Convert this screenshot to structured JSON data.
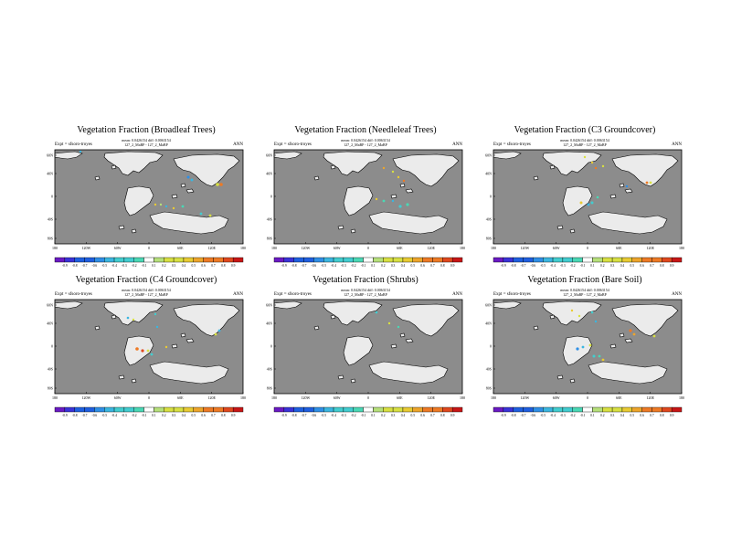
{
  "page": {
    "background": "#ffffff"
  },
  "colors": {
    "ocean": "#8c8c8c",
    "land": "#ebebeb",
    "palette": [
      "#6a1ac4",
      "#3a33d8",
      "#1f5fe0",
      "#2f8fe6",
      "#3bb6e0",
      "#42cdd0",
      "#4ad8b5",
      "#ffffff",
      "#b6e07a",
      "#d8e042",
      "#e9cb33",
      "#eea52b",
      "#ee7a25",
      "#e0481e",
      "#c81616"
    ]
  },
  "panels": [
    {
      "title": "Vegetation Fraction (Broadleaf Trees)",
      "meta_line1": "mean: 0.0426154 diff: 0.0063154",
      "meta_line2": "127_2_MaBP - 127_2_MaBP",
      "expt": "Expt = sfsoro-troyes",
      "season": "ANN",
      "lat_labels": [
        "60N",
        "40N",
        "0",
        "40S",
        "80S"
      ],
      "lon_labels": [
        "180",
        "120W",
        "60W",
        "0",
        "60E",
        "120E",
        "180"
      ],
      "colorbar_labels": [
        "-0.9",
        "-0.8",
        "-0.7",
        "-0.6",
        "-0.5",
        "-0.4",
        "-0.3",
        "-0.2",
        "-0.1",
        "0.1",
        "0.2",
        "0.3",
        "0.4",
        "0.5",
        "0.6",
        "0.7",
        "0.8",
        "0.9"
      ]
    },
    {
      "title": "Vegetation Fraction (Needleleaf Trees)",
      "meta_line1": "mean: 0.0426154 diff: 0.0063154",
      "meta_line2": "127_2_MaBP - 127_2_MaBP",
      "expt": "Expt = sfsoro-troyes",
      "season": "ANN",
      "lat_labels": [
        "60N",
        "40N",
        "0",
        "40S",
        "80S"
      ],
      "lon_labels": [
        "180",
        "120W",
        "60W",
        "0",
        "60E",
        "120E",
        "180"
      ],
      "colorbar_labels": [
        "-0.9",
        "-0.8",
        "-0.7",
        "-0.6",
        "-0.5",
        "-0.4",
        "-0.3",
        "-0.2",
        "-0.1",
        "0.1",
        "0.2",
        "0.3",
        "0.4",
        "0.5",
        "0.6",
        "0.7",
        "0.8",
        "0.9"
      ]
    },
    {
      "title": "Vegetation Fraction (C3 Groundcover)",
      "meta_line1": "mean: 0.0426154 diff: 0.0063154",
      "meta_line2": "127_2_MaBP - 127_2_MaBP",
      "expt": "Expt = sfsoro-troyes",
      "season": "ANN",
      "lat_labels": [
        "60N",
        "40N",
        "0",
        "40S",
        "80S"
      ],
      "lon_labels": [
        "180",
        "120W",
        "60W",
        "0",
        "60E",
        "120E",
        "180"
      ],
      "colorbar_labels": [
        "-0.9",
        "-0.8",
        "-0.7",
        "-0.6",
        "-0.5",
        "-0.4",
        "-0.3",
        "-0.2",
        "-0.1",
        "0.1",
        "0.2",
        "0.3",
        "0.4",
        "0.5",
        "0.6",
        "0.7",
        "0.8",
        "0.9"
      ]
    },
    {
      "title": "Vegetation Fraction (C4 Groundcover)",
      "meta_line1": "mean: 0.0426154 diff: 0.0063154",
      "meta_line2": "127_2_MaBP - 127_2_MaBP",
      "expt": "Expt = sfsoro-troyes",
      "season": "ANN",
      "lat_labels": [
        "60N",
        "40N",
        "0",
        "40S",
        "80S"
      ],
      "lon_labels": [
        "180",
        "120W",
        "60W",
        "0",
        "60E",
        "120E",
        "180"
      ],
      "colorbar_labels": [
        "-0.9",
        "-0.8",
        "-0.7",
        "-0.6",
        "-0.5",
        "-0.4",
        "-0.3",
        "-0.2",
        "-0.1",
        "0.1",
        "0.2",
        "0.3",
        "0.4",
        "0.5",
        "0.6",
        "0.7",
        "0.8",
        "0.9"
      ]
    },
    {
      "title": "Vegetation Fraction (Shrubs)",
      "meta_line1": "mean: 0.0426154 diff: 0.0063154",
      "meta_line2": "127_2_MaBP - 127_2_MaBP",
      "expt": "Expt = sfsoro-troyes",
      "season": "ANN",
      "lat_labels": [
        "60N",
        "40N",
        "0",
        "40S",
        "80S"
      ],
      "lon_labels": [
        "180",
        "120W",
        "60W",
        "0",
        "60E",
        "120E",
        "180"
      ],
      "colorbar_labels": [
        "-0.9",
        "-0.8",
        "-0.7",
        "-0.6",
        "-0.5",
        "-0.4",
        "-0.3",
        "-0.2",
        "-0.1",
        "0.1",
        "0.2",
        "0.3",
        "0.4",
        "0.5",
        "0.6",
        "0.7",
        "0.8",
        "0.9"
      ]
    },
    {
      "title": "Vegetation Fraction (Bare Soil)",
      "meta_line1": "mean: 0.0426154 diff: 0.0063154",
      "meta_line2": "127_2_MaBP - 127_2_MaBP",
      "expt": "Expt = sfsoro-troyes",
      "season": "ANN",
      "lat_labels": [
        "60N",
        "40N",
        "0",
        "40S",
        "80S"
      ],
      "lon_labels": [
        "180",
        "120W",
        "60W",
        "0",
        "60E",
        "120E",
        "180"
      ],
      "colorbar_labels": [
        "-0.9",
        "-0.8",
        "-0.7",
        "-0.6",
        "-0.5",
        "-0.4",
        "-0.3",
        "-0.2",
        "-0.1",
        "0.1",
        "0.2",
        "0.3",
        "0.4",
        "0.5",
        "0.6",
        "0.7",
        "0.8",
        "0.9"
      ]
    }
  ]
}
